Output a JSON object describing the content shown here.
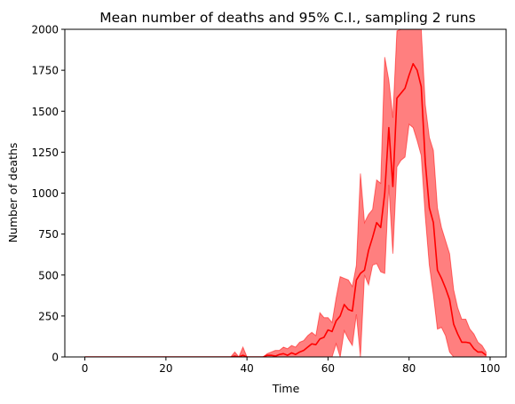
{
  "chart_data": {
    "type": "line",
    "title": "Mean number of deaths and 95% C.I., sampling 2 runs",
    "xlabel": "Time",
    "ylabel": "Number of deaths",
    "xlim": [
      -4.95,
      103.95
    ],
    "ylim": [
      0,
      2000
    ],
    "x_ticks": [
      0,
      20,
      40,
      60,
      80,
      100
    ],
    "y_ticks": [
      0,
      250,
      500,
      750,
      1000,
      1250,
      1500,
      1750,
      2000
    ],
    "grid": false,
    "colors": {
      "line": "#ff0000",
      "band": "#ff0000",
      "band_opacity": 0.5
    },
    "series": [
      {
        "x": [
          0,
          1,
          2,
          3,
          4,
          5,
          6,
          7,
          8,
          9,
          10,
          11,
          12,
          13,
          14,
          15,
          16,
          17,
          18,
          19,
          20,
          21,
          22,
          23,
          24,
          25,
          26,
          27,
          28,
          29,
          30,
          31,
          32,
          33,
          34,
          35,
          36,
          37,
          38,
          39,
          40,
          41,
          42,
          43,
          44,
          45,
          46,
          47,
          48,
          49,
          50,
          51,
          52,
          53,
          54,
          55,
          56,
          57,
          58,
          59,
          60,
          61,
          62,
          63,
          64,
          65,
          66,
          67,
          68,
          69,
          70,
          71,
          72,
          73,
          74,
          75,
          76,
          77,
          78,
          79,
          80,
          81,
          82,
          83,
          84,
          85,
          86,
          87,
          88,
          89,
          90,
          91,
          92,
          93,
          94,
          95,
          96,
          97,
          98,
          99
        ],
        "mean": [
          0,
          0,
          0,
          0,
          0,
          0,
          0,
          0,
          0,
          0,
          0,
          0,
          0,
          0,
          0,
          0,
          0,
          0,
          0,
          0,
          0,
          0,
          0,
          0,
          0,
          0,
          0,
          0,
          0,
          0,
          0,
          0,
          0,
          0,
          0,
          0,
          0,
          5,
          0,
          10,
          0,
          0,
          0,
          0,
          0,
          10,
          10,
          5,
          15,
          20,
          10,
          25,
          15,
          30,
          40,
          60,
          80,
          75,
          110,
          120,
          165,
          155,
          220,
          250,
          320,
          290,
          280,
          470,
          510,
          530,
          650,
          730,
          820,
          790,
          1000,
          1400,
          1040,
          1580,
          1610,
          1640,
          1720,
          1790,
          1750,
          1650,
          1190,
          910,
          820,
          530,
          480,
          420,
          350,
          200,
          140,
          90,
          90,
          85,
          50,
          30,
          30,
          10
        ],
        "lower": [
          0,
          0,
          0,
          0,
          0,
          0,
          0,
          0,
          0,
          0,
          0,
          0,
          0,
          0,
          0,
          0,
          0,
          0,
          0,
          0,
          0,
          0,
          0,
          0,
          0,
          0,
          0,
          0,
          0,
          0,
          0,
          0,
          0,
          0,
          0,
          0,
          0,
          0,
          0,
          0,
          0,
          0,
          0,
          0,
          0,
          0,
          0,
          0,
          0,
          0,
          0,
          0,
          0,
          0,
          0,
          0,
          0,
          0,
          0,
          0,
          0,
          0,
          80,
          0,
          160,
          110,
          70,
          260,
          0,
          500,
          440,
          560,
          570,
          520,
          510,
          1050,
          630,
          1160,
          1200,
          1220,
          1420,
          1400,
          1320,
          1230,
          860,
          560,
          380,
          170,
          180,
          130,
          30,
          0,
          0,
          0,
          0,
          0,
          0,
          0,
          0,
          0
        ],
        "upper": [
          0,
          0,
          0,
          0,
          0,
          0,
          0,
          0,
          0,
          0,
          0,
          0,
          0,
          0,
          0,
          0,
          0,
          0,
          0,
          0,
          0,
          0,
          0,
          0,
          0,
          0,
          0,
          0,
          0,
          0,
          0,
          0,
          0,
          0,
          0,
          0,
          0,
          30,
          0,
          60,
          0,
          0,
          0,
          0,
          0,
          20,
          30,
          40,
          40,
          60,
          50,
          70,
          60,
          90,
          100,
          130,
          150,
          130,
          270,
          240,
          240,
          210,
          360,
          490,
          480,
          470,
          430,
          560,
          1120,
          820,
          870,
          900,
          1080,
          1060,
          1830,
          1690,
          1460,
          1990,
          2000,
          2070,
          2070,
          2250,
          2180,
          2070,
          1540,
          1340,
          1260,
          910,
          790,
          710,
          630,
          410,
          300,
          230,
          230,
          170,
          140,
          90,
          70,
          30
        ]
      }
    ]
  }
}
